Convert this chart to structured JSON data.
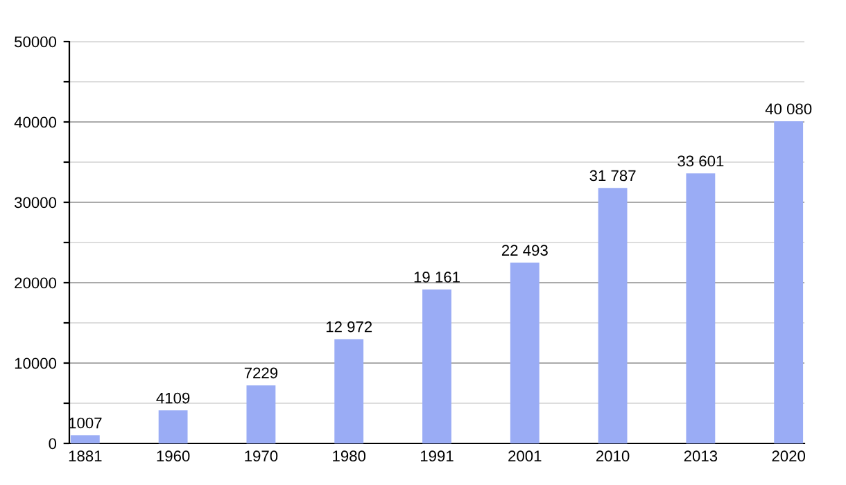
{
  "chart_data": {
    "type": "bar",
    "categories": [
      "1881",
      "1960",
      "1970",
      "1980",
      "1991",
      "2001",
      "2010",
      "2013",
      "2020"
    ],
    "values": [
      1007,
      4109,
      7229,
      12972,
      19161,
      22493,
      31787,
      33601,
      40080
    ],
    "value_labels": [
      "1007",
      "4109",
      "7229",
      "12 972",
      "19 161",
      "22 493",
      "31 787",
      "33 601",
      "40 080"
    ],
    "color": "#9aacf5",
    "ylim": [
      0,
      50000
    ],
    "yticks": [
      0,
      {
        "value": 5000,
        "label": null
      },
      10000,
      {
        "value": 15000,
        "label": null
      },
      20000,
      {
        "value": 25000,
        "label": null
      },
      30000,
      {
        "value": 35000,
        "label": null
      },
      40000,
      {
        "value": 45000,
        "label": null
      },
      50000
    ],
    "grid": "y"
  }
}
